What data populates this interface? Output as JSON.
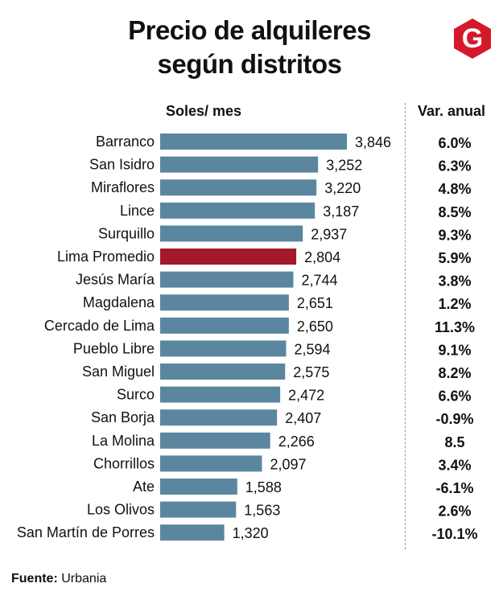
{
  "chart_data": {
    "type": "bar",
    "orientation": "horizontal",
    "title_line1": "Precio de alquileres",
    "title_line2": "según distritos",
    "value_header": "Soles/ mes",
    "change_header": "Var. anual",
    "categories": [
      "Barranco",
      "San Isidro",
      "Miraflores",
      "Lince",
      "Surquillo",
      "Lima Promedio",
      "Jesús María",
      "Magdalena",
      "Cercado de Lima",
      "Pueblo Libre",
      "San Miguel",
      "Surco",
      "San Borja",
      "La Molina",
      "Chorrillos",
      "Ate",
      "Los Olivos",
      "San Martín de Porres"
    ],
    "values": [
      3846,
      3252,
      3220,
      3187,
      2937,
      2804,
      2744,
      2651,
      2650,
      2594,
      2575,
      2472,
      2407,
      2266,
      2097,
      1588,
      1563,
      1320
    ],
    "value_labels": [
      "3,846",
      "3,252",
      "3,220",
      "3,187",
      "2,937",
      "2,804",
      "2,744",
      "2,651",
      "2,650",
      "2,594",
      "2,575",
      "2,472",
      "2,407",
      "2,266",
      "2,097",
      "1,588",
      "1,563",
      "1,320"
    ],
    "var_labels": [
      "6.0%",
      "6.3%",
      "4.8%",
      "8.5%",
      "9.3%",
      "5.9%",
      "3.8%",
      "1.2%",
      "11.3%",
      "9.1%",
      "8.2%",
      "6.6%",
      "-0.9%",
      "8.5",
      "3.4%",
      "-6.1%",
      "2.6%",
      "-10.1%"
    ],
    "highlight_category": "Lima Promedio",
    "colors": {
      "bar": "#5a879f",
      "highlight": "#a3192a"
    }
  },
  "logo": {
    "letter": "G",
    "color": "#d4192a"
  },
  "footer": {
    "label": "Fuente:",
    "source": "Urbania"
  }
}
